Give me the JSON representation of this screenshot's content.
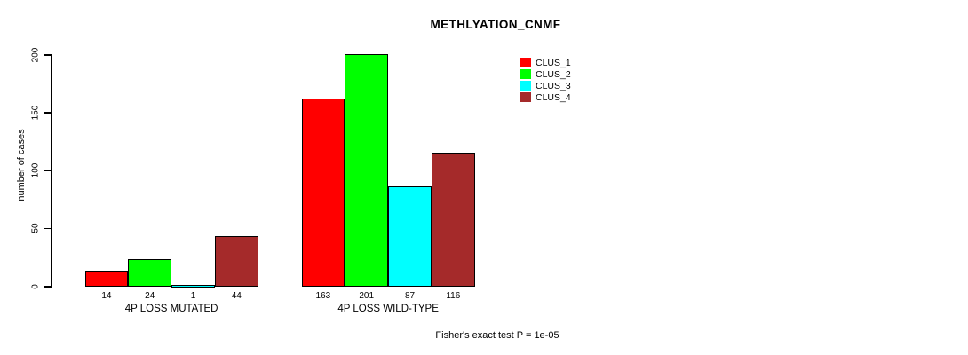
{
  "chart_data": {
    "type": "bar",
    "title": "METHLYATION_CNMF",
    "xlabel": "",
    "ylabel": "number of cases",
    "categories": [
      "4P LOSS MUTATED",
      "4P LOSS WILD-TYPE"
    ],
    "series": [
      {
        "name": "CLUS_1",
        "color": "#ff0000",
        "values": [
          14,
          163
        ]
      },
      {
        "name": "CLUS_2",
        "color": "#00ff00",
        "values": [
          24,
          201
        ]
      },
      {
        "name": "CLUS_3",
        "color": "#00ffff",
        "values": [
          1,
          87
        ]
      },
      {
        "name": "CLUS_4",
        "color": "#a52a2a",
        "values": [
          44,
          116
        ]
      }
    ],
    "bar_value_labels": [
      [
        14,
        24,
        1,
        44
      ],
      [
        163,
        201,
        87,
        116
      ]
    ],
    "yticks": [
      0,
      50,
      100,
      150,
      200
    ],
    "ylim": [
      0,
      200
    ],
    "grid": false,
    "legend_position": "top-right",
    "legend_entries": [
      "CLUS_1",
      "CLUS_2",
      "CLUS_3",
      "CLUS_4"
    ],
    "annotation": "Fisher's exact test P = 1e-05",
    "axis_color": "#000000",
    "background_color": "#ffffff"
  }
}
